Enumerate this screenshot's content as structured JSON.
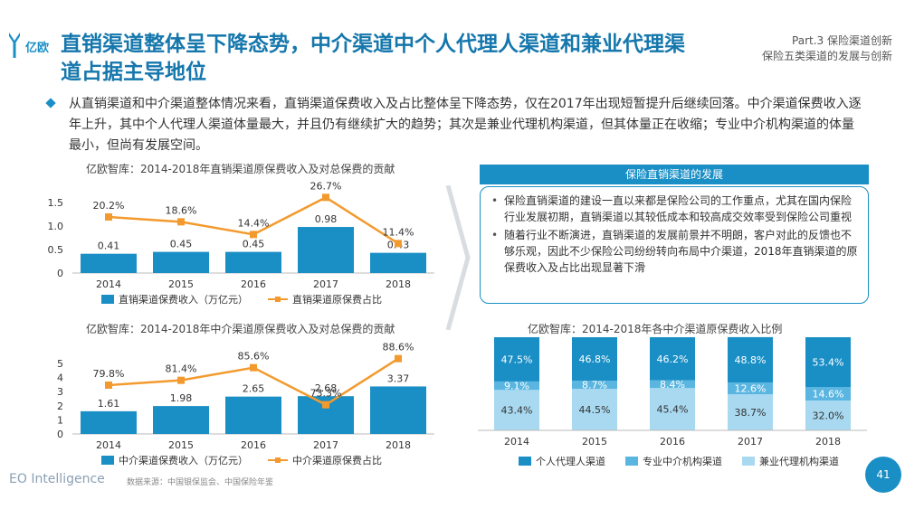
{
  "logo": {
    "text": "亿欧",
    "icon": "logo-y-icon"
  },
  "title": "直销渠道整体呈下降态势，中介渠道中个人代理人渠道和兼业代理渠道占据主导地位",
  "part": {
    "line1": "Part.3  保险渠道创新",
    "line2": "保险五类渠道的发展与创新"
  },
  "paragraph": "从直销渠道和中介渠道整体情况来看，直销渠道保费收入及占比整体呈下降态势，仅在2017年出现短暂提升后继续回落。中介渠道保费收入逐年上升，其中个人代理人渠道体量最大，并且仍有继续扩大的趋势；其次是兼业代理机构渠道，但其体量正在收缩；专业中介机构渠道的体量最小，但尚有发展空间。",
  "colors": {
    "primary": "#1a8fc6",
    "line": "#f39a2e",
    "light1": "#5ab6e0",
    "light2": "#a9d9f0"
  },
  "chart_data": [
    {
      "type": "bar",
      "title": "亿欧智库：2014-2018年直销渠道原保费收入及对总保费的贡献",
      "categories": [
        "2014",
        "2015",
        "2016",
        "2017",
        "2018"
      ],
      "yticks": [
        "0",
        "0.5",
        "1.0",
        "1.5"
      ],
      "ylim": [
        0,
        1.5
      ],
      "bar_labels": [
        "0.41",
        "0.45",
        "0.45",
        "0.98",
        "0.43"
      ],
      "line_labels": [
        "20.2%",
        "18.6%",
        "14.4%",
        "26.7%",
        "11.4%"
      ],
      "series": [
        {
          "name": "直销渠道保费收入（万亿元）",
          "kind": "bar",
          "values": [
            0.41,
            0.45,
            0.45,
            0.98,
            0.43
          ]
        },
        {
          "name": "直销渠道原保费占比",
          "kind": "line",
          "values": [
            20.2,
            18.6,
            14.4,
            26.7,
            11.4
          ]
        }
      ]
    },
    {
      "type": "bar",
      "title": "亿欧智库：2014-2018年中介渠道原保费收入及对总保费的贡献",
      "categories": [
        "2014",
        "2015",
        "2016",
        "2017",
        "2018"
      ],
      "yticks": [
        "0",
        "1",
        "2",
        "3",
        "4",
        "5"
      ],
      "ylim": [
        0,
        5
      ],
      "bar_labels": [
        "1.61",
        "1.98",
        "2.65",
        "2.68",
        "3.37"
      ],
      "line_labels": [
        "79.8%",
        "81.4%",
        "85.6%",
        "73.3%",
        "88.6%"
      ],
      "series": [
        {
          "name": "中介渠道保费收入（万亿元）",
          "kind": "bar",
          "values": [
            1.61,
            1.98,
            2.65,
            2.68,
            3.37
          ]
        },
        {
          "name": "中介渠道原保费占比",
          "kind": "line",
          "values": [
            79.8,
            81.4,
            85.6,
            73.3,
            88.6
          ]
        }
      ]
    },
    {
      "type": "bar",
      "stacked": true,
      "title": "亿欧智库：2014-2018年各中介渠道原保费收入比例",
      "categories": [
        "2014",
        "2015",
        "2016",
        "2017",
        "2018"
      ],
      "series": [
        {
          "name": "兼业代理机构渠道",
          "values": [
            43.4,
            44.5,
            45.4,
            38.7,
            32.0
          ],
          "labels": [
            "43.4%",
            "44.5%",
            "45.4%",
            "38.7%",
            "32.0%"
          ]
        },
        {
          "name": "专业中介机构渠道",
          "values": [
            9.1,
            8.7,
            8.4,
            12.6,
            14.6
          ],
          "labels": [
            "9.1%",
            "8.7%",
            "8.4%",
            "12.6%",
            "14.6%"
          ]
        },
        {
          "name": "个人代理人渠道",
          "values": [
            47.5,
            46.8,
            46.2,
            48.8,
            53.4
          ],
          "labels": [
            "47.5%",
            "46.8%",
            "46.2%",
            "48.8%",
            "53.4%"
          ]
        }
      ],
      "legend": [
        "个人代理人渠道",
        "专业中介机构渠道",
        "兼业代理机构渠道"
      ]
    }
  ],
  "box": {
    "header": "保险直销渠道的发展",
    "items": [
      "保险直销渠道的建设一直以来都是保险公司的工作重点，尤其在国内保险行业发展初期，直销渠道以其较低成本和较高成交效率受到保险公司重视",
      "随着行业不断演进，直销渠道的发展前景并不明朗，客户对此的反馈也不够乐观，因此不少保险公司纷纷转向布局中介渠道，2018年直销渠道的原保费收入及占比出现显著下滑"
    ]
  },
  "footer": {
    "brand": "EO Intelligence",
    "source": "数据来源：中国银保监会、中国保险年鉴",
    "page": "41"
  }
}
